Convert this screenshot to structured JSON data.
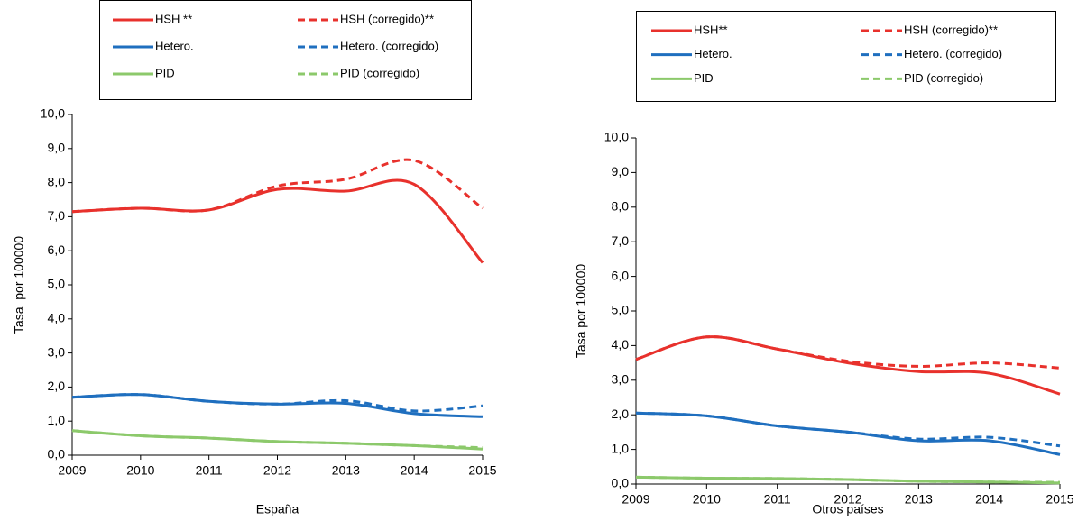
{
  "chart_data": [
    {
      "type": "line",
      "x_label": "España",
      "y_label": "Tasa  por 100000",
      "x": [
        2009,
        2010,
        2011,
        2012,
        2013,
        2014,
        2015
      ],
      "xlim": [
        2009,
        2015
      ],
      "xticks": [
        2009,
        2010,
        2011,
        2012,
        2013,
        2014,
        2015
      ],
      "ylim": [
        0,
        10
      ],
      "yticks": [
        {
          "value": 0,
          "label": "0,0"
        },
        {
          "value": 1,
          "label": "1,0"
        },
        {
          "value": 2,
          "label": "2,0"
        },
        {
          "value": 3,
          "label": "3,0"
        },
        {
          "value": 4,
          "label": "4,0"
        },
        {
          "value": 5,
          "label": "5,0"
        },
        {
          "value": 6,
          "label": "6,0"
        },
        {
          "value": 7,
          "label": "7,0"
        },
        {
          "value": 8,
          "label": "8,0"
        },
        {
          "value": 9,
          "label": "9,0"
        },
        {
          "value": 10,
          "label": "10,0"
        }
      ],
      "series": [
        {
          "name": "HSH **",
          "color": "#e8312c",
          "dashed": false,
          "values": [
            7.15,
            7.25,
            7.2,
            7.8,
            7.75,
            7.95,
            5.65
          ]
        },
        {
          "name": "HSH (corregido)**",
          "color": "#e8312c",
          "dashed": true,
          "values": [
            7.15,
            7.25,
            7.2,
            7.9,
            8.1,
            8.65,
            7.25
          ]
        },
        {
          "name": "Hetero.",
          "color": "#1f6fbf",
          "dashed": false,
          "values": [
            1.7,
            1.78,
            1.58,
            1.5,
            1.52,
            1.22,
            1.13
          ]
        },
        {
          "name": "Hetero. (corregido)",
          "color": "#1f6fbf",
          "dashed": true,
          "values": [
            1.7,
            1.78,
            1.58,
            1.5,
            1.6,
            1.3,
            1.45
          ]
        },
        {
          "name": "PID",
          "color": "#8cc96b",
          "dashed": false,
          "values": [
            0.72,
            0.57,
            0.5,
            0.4,
            0.35,
            0.28,
            0.18
          ]
        },
        {
          "name": "PID (corregido)",
          "color": "#8cc96b",
          "dashed": true,
          "values": [
            0.72,
            0.57,
            0.5,
            0.4,
            0.35,
            0.28,
            0.22
          ]
        }
      ]
    },
    {
      "type": "line",
      "x_label": "Otros países",
      "y_label": "Tasa por 100000",
      "x": [
        2009,
        2010,
        2011,
        2012,
        2013,
        2014,
        2015
      ],
      "xlim": [
        2009,
        2015
      ],
      "xticks": [
        2009,
        2010,
        2011,
        2012,
        2013,
        2014,
        2015
      ],
      "ylim": [
        0,
        10
      ],
      "yticks": [
        {
          "value": 0,
          "label": "0,0"
        },
        {
          "value": 1,
          "label": "1,0"
        },
        {
          "value": 2,
          "label": "2,0"
        },
        {
          "value": 3,
          "label": "3,0"
        },
        {
          "value": 4,
          "label": "4,0"
        },
        {
          "value": 5,
          "label": "5,0"
        },
        {
          "value": 6,
          "label": "6,0"
        },
        {
          "value": 7,
          "label": "7,0"
        },
        {
          "value": 8,
          "label": "8,0"
        },
        {
          "value": 9,
          "label": "9,0"
        },
        {
          "value": 10,
          "label": "10,0"
        }
      ],
      "series": [
        {
          "name": "HSH**",
          "color": "#e8312c",
          "dashed": false,
          "values": [
            3.6,
            4.25,
            3.9,
            3.5,
            3.25,
            3.2,
            2.6
          ]
        },
        {
          "name": "HSH (corregido)**",
          "color": "#e8312c",
          "dashed": true,
          "values": [
            3.6,
            4.25,
            3.9,
            3.55,
            3.4,
            3.5,
            3.35
          ]
        },
        {
          "name": "Hetero.",
          "color": "#1f6fbf",
          "dashed": false,
          "values": [
            2.05,
            1.97,
            1.68,
            1.5,
            1.25,
            1.25,
            0.85
          ]
        },
        {
          "name": "Hetero. (corregido)",
          "color": "#1f6fbf",
          "dashed": true,
          "values": [
            2.05,
            1.97,
            1.68,
            1.5,
            1.3,
            1.35,
            1.1
          ]
        },
        {
          "name": "PID",
          "color": "#8cc96b",
          "dashed": false,
          "values": [
            0.2,
            0.17,
            0.16,
            0.13,
            0.08,
            0.06,
            0.03
          ]
        },
        {
          "name": "PID (corregido)",
          "color": "#8cc96b",
          "dashed": true,
          "values": [
            0.2,
            0.17,
            0.16,
            0.13,
            0.08,
            0.06,
            0.05
          ]
        }
      ]
    }
  ]
}
